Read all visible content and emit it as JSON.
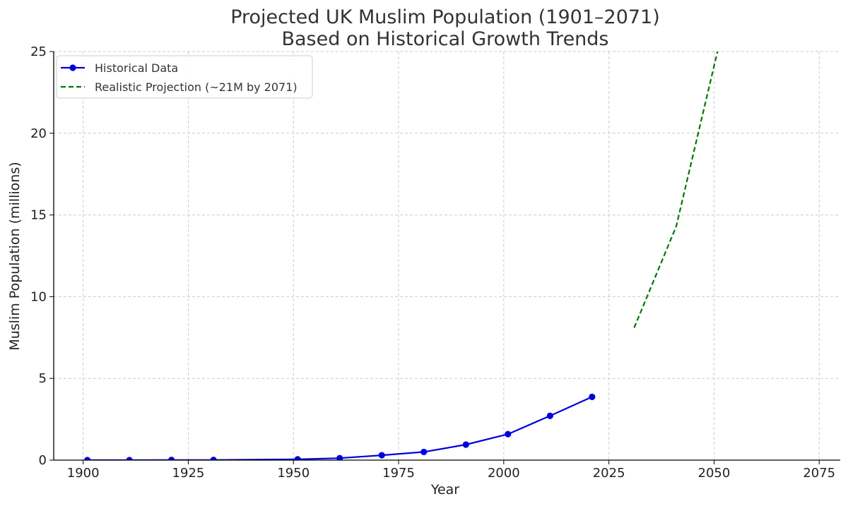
{
  "chart_data": {
    "type": "line",
    "title_lines": [
      "Projected UK Muslim Population (1901–2071)",
      "Based on Historical Growth Trends"
    ],
    "xlabel": "Year",
    "ylabel": "Muslim Population (millions)",
    "xlim": [
      1893,
      2080
    ],
    "ylim": [
      0,
      25
    ],
    "x_ticks": [
      1900,
      1925,
      1950,
      1975,
      2000,
      2025,
      2050,
      2075
    ],
    "y_ticks": [
      0,
      5,
      10,
      15,
      20,
      25
    ],
    "grid": true,
    "legend_position": "top-left",
    "series": [
      {
        "name": "Historical Data",
        "style": "solid-markers",
        "color": "#0000dd",
        "x": [
          1901,
          1911,
          1921,
          1931,
          1951,
          1961,
          1971,
          1981,
          1991,
          2001,
          2011,
          2021
        ],
        "y": [
          0.0,
          0.0,
          0.01,
          0.01,
          0.05,
          0.12,
          0.3,
          0.5,
          0.95,
          1.59,
          2.71,
          3.87
        ]
      },
      {
        "name": "Realistic Projection (~21M by 2071)",
        "style": "dashed",
        "color": "#007700",
        "x": [
          2031,
          2041,
          2051
        ],
        "y": [
          8.1,
          14.3,
          25.2
        ]
      }
    ]
  }
}
